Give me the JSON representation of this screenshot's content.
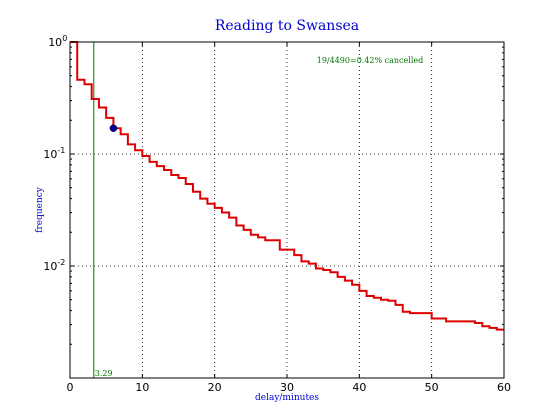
{
  "chart_data": {
    "type": "line",
    "title": "Reading to Swansea",
    "xlabel": "delay/minutes",
    "ylabel": "frequency",
    "xlim": [
      0,
      60
    ],
    "ylim": [
      0.001,
      1
    ],
    "yscale": "log",
    "grid": true,
    "x_ticks": [
      "0",
      "10",
      "20",
      "30",
      "40",
      "50",
      "60"
    ],
    "y_ticks": [
      {
        "base": "10",
        "exp": "0",
        "value": 1
      },
      {
        "base": "10",
        "exp": "-1",
        "value": 0.1
      },
      {
        "base": "10",
        "exp": "-2",
        "value": 0.01
      }
    ],
    "series": [
      {
        "color": "#dd0000",
        "x": [
          0,
          1,
          2,
          3,
          4,
          5,
          6,
          7,
          8,
          9,
          10,
          11,
          12,
          13,
          14,
          15,
          16,
          17,
          18,
          19,
          20,
          21,
          22,
          23,
          24,
          25,
          26,
          27,
          28,
          29,
          30,
          31,
          32,
          33,
          34,
          35,
          36,
          37,
          38,
          39,
          40,
          41,
          42,
          43,
          44,
          45,
          46,
          47,
          48,
          49,
          50,
          51,
          52,
          53,
          54,
          55,
          56,
          57,
          58,
          59
        ],
        "y": [
          1.0,
          0.46,
          0.42,
          0.31,
          0.26,
          0.21,
          0.17,
          0.15,
          0.122,
          0.108,
          0.096,
          0.085,
          0.078,
          0.072,
          0.065,
          0.061,
          0.054,
          0.046,
          0.04,
          0.036,
          0.033,
          0.03,
          0.027,
          0.023,
          0.021,
          0.019,
          0.018,
          0.017,
          0.017,
          0.014,
          0.014,
          0.0125,
          0.011,
          0.0105,
          0.0095,
          0.0092,
          0.0088,
          0.008,
          0.0074,
          0.0068,
          0.006,
          0.0054,
          0.0052,
          0.005,
          0.0049,
          0.0045,
          0.0039,
          0.0038,
          0.0038,
          0.0038,
          0.0034,
          0.0034,
          0.0032,
          0.0032,
          0.0032,
          0.0032,
          0.0031,
          0.0029,
          0.0028,
          0.0027
        ]
      }
    ],
    "marker": {
      "x": 6,
      "y": 0.17,
      "color": "#000099"
    },
    "vline": {
      "x": 3.29,
      "color": "#007700",
      "label": "3.29"
    },
    "annotation": "19/4490=0.42% cancelled"
  }
}
